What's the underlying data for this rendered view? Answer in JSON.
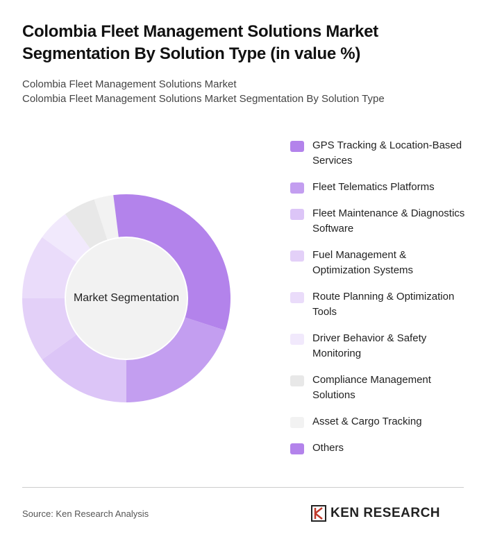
{
  "chart_data": {
    "type": "pie",
    "title": "Colombia Fleet Management Solutions Market Segmentation By Solution Type (in value %)",
    "subtitle": [
      "Colombia Fleet Management Solutions Market",
      "Colombia Fleet Management Solutions Market Segmentation By Solution Type"
    ],
    "center_label": "Market Segmentation",
    "categories": [
      "GPS Tracking & Location-Based Services",
      "Fleet Telematics Platforms",
      "Fleet Maintenance & Diagnostics Software",
      "Fuel Management & Optimization Systems",
      "Route Planning & Optimization Tools",
      "Driver Behavior & Safety Monitoring",
      "Compliance Management Solutions",
      "Asset & Cargo Tracking",
      "Others"
    ],
    "values": [
      30,
      20,
      15,
      10,
      10,
      5,
      5,
      3,
      2
    ],
    "colors": [
      "#b383eb",
      "#c39ef0",
      "#dcc5f7",
      "#e3d0f8",
      "#eadcfa",
      "#f1e9fc",
      "#e8e8e8",
      "#f2f2f2",
      "#b383eb"
    ],
    "source": "Source: Ken Research Analysis",
    "brand": "KEN RESEARCH"
  }
}
